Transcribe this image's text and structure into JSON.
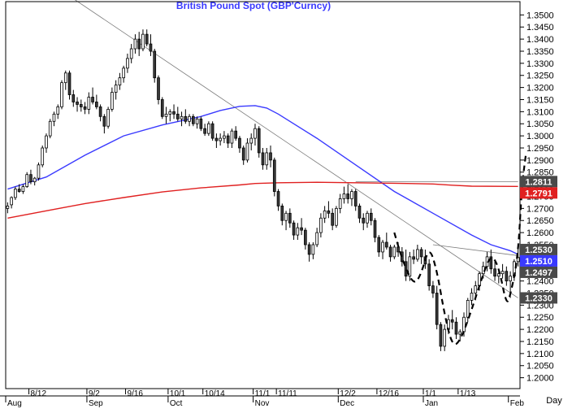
{
  "chart_data": {
    "type": "candlestick",
    "title": "British Pound Spot  (GBP'Curncy)",
    "xlabel": "Day",
    "ylabel": "",
    "ylim": [
      1.1955,
      1.3555
    ],
    "y_ticks": [
      "1.2000",
      "1.2050",
      "1.2100",
      "1.2150",
      "1.2200",
      "1.2250",
      "1.2300",
      "1.2350",
      "1.2400",
      "1.2450",
      "1.2500",
      "1.2550",
      "1.2600",
      "1.2650",
      "1.2700",
      "1.2750",
      "1.2800",
      "1.2850",
      "1.2900",
      "1.2950",
      "1.3000",
      "1.3050",
      "1.3100",
      "1.3150",
      "1.3200",
      "1.3250",
      "1.3300",
      "1.3350",
      "1.3400",
      "1.3450",
      "1.3500"
    ],
    "x_ticks_top": [
      {
        "idx": 6,
        "label": "8/12"
      },
      {
        "idx": 21,
        "label": "9/2"
      },
      {
        "idx": 31,
        "label": "9/16"
      },
      {
        "idx": 42,
        "label": "10/1"
      },
      {
        "idx": 51,
        "label": "10/14"
      },
      {
        "idx": 64,
        "label": "11/1"
      },
      {
        "idx": 70,
        "label": "11/11"
      },
      {
        "idx": 86,
        "label": "12/2"
      },
      {
        "idx": 96,
        "label": "12/16"
      },
      {
        "idx": 108,
        "label": "1/1"
      },
      {
        "idx": 117,
        "label": "1/13"
      }
    ],
    "x_ticks_bottom": [
      {
        "idx": 0,
        "label": "Aug"
      },
      {
        "idx": 21,
        "label": "Sep"
      },
      {
        "idx": 42,
        "label": "Oct"
      },
      {
        "idx": 64,
        "label": "Nov"
      },
      {
        "idx": 86,
        "label": "Dec"
      },
      {
        "idx": 108,
        "label": "Jan"
      },
      {
        "idx": 130,
        "label": "Feb"
      }
    ],
    "ohlc": [
      [
        1.27,
        1.2725,
        1.268,
        1.271
      ],
      [
        1.2715,
        1.275,
        1.27,
        1.2745
      ],
      [
        1.2745,
        1.279,
        1.2735,
        1.278
      ],
      [
        1.278,
        1.28,
        1.2765,
        1.277
      ],
      [
        1.277,
        1.28,
        1.276,
        1.279
      ],
      [
        1.279,
        1.285,
        1.2785,
        1.284
      ],
      [
        1.284,
        1.286,
        1.28,
        1.281
      ],
      [
        1.281,
        1.283,
        1.2795,
        1.2825
      ],
      [
        1.2825,
        1.289,
        1.2815,
        1.288
      ],
      [
        1.288,
        1.296,
        1.287,
        1.295
      ],
      [
        1.295,
        1.301,
        1.293,
        1.3
      ],
      [
        1.3,
        1.307,
        1.299,
        1.306
      ],
      [
        1.306,
        1.31,
        1.304,
        1.309
      ],
      [
        1.309,
        1.313,
        1.307,
        1.312
      ],
      [
        1.312,
        1.323,
        1.311,
        1.322
      ],
      [
        1.322,
        1.327,
        1.319,
        1.326
      ],
      [
        1.326,
        1.327,
        1.315,
        1.317
      ],
      [
        1.317,
        1.319,
        1.312,
        1.314
      ],
      [
        1.314,
        1.316,
        1.31,
        1.313
      ],
      [
        1.313,
        1.315,
        1.31,
        1.312
      ],
      [
        1.312,
        1.314,
        1.309,
        1.311
      ],
      [
        1.311,
        1.318,
        1.309,
        1.316
      ],
      [
        1.316,
        1.32,
        1.313,
        1.314
      ],
      [
        1.314,
        1.317,
        1.311,
        1.312
      ],
      [
        1.312,
        1.313,
        1.306,
        1.308
      ],
      [
        1.308,
        1.309,
        1.301,
        1.304
      ],
      [
        1.304,
        1.312,
        1.303,
        1.311
      ],
      [
        1.311,
        1.32,
        1.31,
        1.318
      ],
      [
        1.318,
        1.323,
        1.315,
        1.321
      ],
      [
        1.321,
        1.326,
        1.319,
        1.324
      ],
      [
        1.324,
        1.329,
        1.322,
        1.328
      ],
      [
        1.328,
        1.334,
        1.326,
        1.332
      ],
      [
        1.332,
        1.338,
        1.33,
        1.336
      ],
      [
        1.336,
        1.342,
        1.334,
        1.34
      ],
      [
        1.34,
        1.343,
        1.333,
        1.336
      ],
      [
        1.336,
        1.344,
        1.335,
        1.342
      ],
      [
        1.342,
        1.344,
        1.337,
        1.338
      ],
      [
        1.338,
        1.342,
        1.333,
        1.335
      ],
      [
        1.335,
        1.336,
        1.322,
        1.324
      ],
      [
        1.324,
        1.325,
        1.313,
        1.315
      ],
      [
        1.315,
        1.316,
        1.307,
        1.308
      ],
      [
        1.308,
        1.312,
        1.305,
        1.309
      ],
      [
        1.309,
        1.311,
        1.306,
        1.31
      ],
      [
        1.31,
        1.313,
        1.307,
        1.309
      ],
      [
        1.309,
        1.312,
        1.306,
        1.307
      ],
      [
        1.307,
        1.31,
        1.304,
        1.308
      ],
      [
        1.308,
        1.311,
        1.305,
        1.306
      ],
      [
        1.306,
        1.309,
        1.304,
        1.308
      ],
      [
        1.308,
        1.309,
        1.304,
        1.305
      ],
      [
        1.305,
        1.308,
        1.303,
        1.307
      ],
      [
        1.307,
        1.308,
        1.302,
        1.303
      ],
      [
        1.303,
        1.305,
        1.3,
        1.301
      ],
      [
        1.301,
        1.306,
        1.3,
        1.305
      ],
      [
        1.305,
        1.306,
        1.298,
        1.299
      ],
      [
        1.299,
        1.301,
        1.295,
        1.298
      ],
      [
        1.298,
        1.301,
        1.296,
        1.299
      ],
      [
        1.299,
        1.302,
        1.297,
        1.3
      ],
      [
        1.3,
        1.301,
        1.295,
        1.297
      ],
      [
        1.297,
        1.303,
        1.295,
        1.302
      ],
      [
        1.302,
        1.304,
        1.298,
        1.299
      ],
      [
        1.299,
        1.3,
        1.293,
        1.295
      ],
      [
        1.295,
        1.296,
        1.288,
        1.29
      ],
      [
        1.29,
        1.299,
        1.289,
        1.297
      ],
      [
        1.297,
        1.301,
        1.294,
        1.299
      ],
      [
        1.299,
        1.305,
        1.296,
        1.303
      ],
      [
        1.303,
        1.304,
        1.291,
        1.293
      ],
      [
        1.293,
        1.295,
        1.286,
        1.288
      ],
      [
        1.288,
        1.295,
        1.286,
        1.293
      ],
      [
        1.293,
        1.296,
        1.287,
        1.29
      ],
      [
        1.29,
        1.291,
        1.275,
        1.277
      ],
      [
        1.277,
        1.278,
        1.269,
        1.271
      ],
      [
        1.271,
        1.272,
        1.263,
        1.265
      ],
      [
        1.265,
        1.269,
        1.261,
        1.268
      ],
      [
        1.268,
        1.27,
        1.262,
        1.264
      ],
      [
        1.264,
        1.265,
        1.257,
        1.259
      ],
      [
        1.259,
        1.264,
        1.257,
        1.262
      ],
      [
        1.262,
        1.266,
        1.259,
        1.261
      ],
      [
        1.261,
        1.262,
        1.253,
        1.255
      ],
      [
        1.255,
        1.256,
        1.248,
        1.251
      ],
      [
        1.251,
        1.256,
        1.249,
        1.255
      ],
      [
        1.255,
        1.262,
        1.254,
        1.26
      ],
      [
        1.26,
        1.268,
        1.258,
        1.266
      ],
      [
        1.266,
        1.271,
        1.264,
        1.269
      ],
      [
        1.269,
        1.273,
        1.266,
        1.268
      ],
      [
        1.268,
        1.27,
        1.261,
        1.263
      ],
      [
        1.263,
        1.271,
        1.262,
        1.27
      ],
      [
        1.27,
        1.276,
        1.268,
        1.274
      ],
      [
        1.274,
        1.279,
        1.272,
        1.276
      ],
      [
        1.276,
        1.28,
        1.272,
        1.274
      ],
      [
        1.274,
        1.278,
        1.271,
        1.277
      ],
      [
        1.277,
        1.278,
        1.269,
        1.271
      ],
      [
        1.271,
        1.272,
        1.264,
        1.266
      ],
      [
        1.266,
        1.268,
        1.261,
        1.264
      ],
      [
        1.264,
        1.269,
        1.262,
        1.268
      ],
      [
        1.268,
        1.27,
        1.263,
        1.265
      ],
      [
        1.265,
        1.266,
        1.256,
        1.258
      ],
      [
        1.258,
        1.259,
        1.25,
        1.252
      ],
      [
        1.252,
        1.257,
        1.249,
        1.256
      ],
      [
        1.256,
        1.26,
        1.253,
        1.254
      ],
      [
        1.254,
        1.255,
        1.248,
        1.25
      ],
      [
        1.25,
        1.255,
        1.249,
        1.254
      ],
      [
        1.254,
        1.256,
        1.25,
        1.252
      ],
      [
        1.252,
        1.254,
        1.246,
        1.248
      ],
      [
        1.248,
        1.253,
        1.24,
        1.242
      ],
      [
        1.242,
        1.252,
        1.24,
        1.25
      ],
      [
        1.25,
        1.253,
        1.247,
        1.249
      ],
      [
        1.249,
        1.255,
        1.248,
        1.253
      ],
      [
        1.253,
        1.254,
        1.247,
        1.25
      ],
      [
        1.25,
        1.253,
        1.245,
        1.247
      ],
      [
        1.247,
        1.249,
        1.236,
        1.238
      ],
      [
        1.238,
        1.24,
        1.233,
        1.235
      ],
      [
        1.235,
        1.238,
        1.22,
        1.222
      ],
      [
        1.222,
        1.223,
        1.211,
        1.213
      ],
      [
        1.213,
        1.222,
        1.211,
        1.22
      ],
      [
        1.22,
        1.226,
        1.218,
        1.224
      ],
      [
        1.224,
        1.228,
        1.22,
        1.223
      ],
      [
        1.223,
        1.225,
        1.216,
        1.218
      ],
      [
        1.218,
        1.22,
        1.215,
        1.219
      ],
      [
        1.219,
        1.227,
        1.217,
        1.225
      ],
      [
        1.225,
        1.233,
        1.223,
        1.232
      ],
      [
        1.232,
        1.237,
        1.23,
        1.235
      ],
      [
        1.235,
        1.24,
        1.232,
        1.238
      ],
      [
        1.238,
        1.244,
        1.236,
        1.243
      ],
      [
        1.243,
        1.248,
        1.241,
        1.246
      ],
      [
        1.246,
        1.252,
        1.244,
        1.25
      ],
      [
        1.25,
        1.253,
        1.243,
        1.245
      ],
      [
        1.245,
        1.248,
        1.24,
        1.242
      ],
      [
        1.242,
        1.244,
        1.239,
        1.243
      ],
      [
        1.243,
        1.247,
        1.241,
        1.244
      ],
      [
        1.244,
        1.246,
        1.238,
        1.24
      ],
      [
        1.24,
        1.244,
        1.233,
        1.242
      ],
      [
        1.242,
        1.249,
        1.24,
        1.248
      ],
      [
        1.248,
        1.254,
        1.246,
        1.2497
      ]
    ],
    "series": [
      {
        "name": "",
        "color": "#3a3aff",
        "points": [
          [
            0,
            1.278
          ],
          [
            10,
            1.283
          ],
          [
            20,
            1.292
          ],
          [
            30,
            1.3
          ],
          [
            40,
            1.3045
          ],
          [
            50,
            1.308
          ],
          [
            55,
            1.3105
          ],
          [
            60,
            1.3122
          ],
          [
            64,
            1.3125
          ],
          [
            67,
            1.3115
          ],
          [
            70,
            1.309
          ],
          [
            80,
            1.299
          ],
          [
            90,
            1.288
          ],
          [
            100,
            1.277
          ],
          [
            110,
            1.268
          ],
          [
            120,
            1.259
          ],
          [
            125,
            1.255
          ],
          [
            130,
            1.2525
          ],
          [
            132,
            1.251
          ]
        ]
      },
      {
        "name": "",
        "color": "#e02020",
        "points": [
          [
            0,
            1.266
          ],
          [
            10,
            1.269
          ],
          [
            20,
            1.272
          ],
          [
            30,
            1.2745
          ],
          [
            40,
            1.2768
          ],
          [
            50,
            1.2785
          ],
          [
            60,
            1.2797
          ],
          [
            64,
            1.2803
          ],
          [
            70,
            1.2806
          ],
          [
            80,
            1.2808
          ],
          [
            90,
            1.2806
          ],
          [
            100,
            1.2804
          ],
          [
            110,
            1.2801
          ],
          [
            115,
            1.2796
          ],
          [
            120,
            1.2792
          ],
          [
            132,
            1.2791
          ]
        ]
      }
    ],
    "trendlines": [
      {
        "points": [
          [
            0,
            1.375
          ],
          [
            132,
            1.233
          ]
        ]
      },
      {
        "points": [
          [
            110,
            1.255
          ],
          [
            132,
            1.2505
          ]
        ]
      },
      {
        "points": [
          [
            90,
            1.2811
          ],
          [
            132,
            1.2811
          ]
        ]
      }
    ],
    "projection": {
      "style": "dashed",
      "points": [
        [
          100,
          1.26
        ],
        [
          102,
          1.249
        ],
        [
          105,
          1.238
        ],
        [
          107,
          1.243
        ],
        [
          109,
          1.2545
        ],
        [
          111,
          1.2445
        ],
        [
          113,
          1.226
        ],
        [
          115,
          1.213
        ],
        [
          117,
          1.215
        ],
        [
          120,
          1.228
        ],
        [
          123,
          1.243
        ],
        [
          125,
          1.251
        ],
        [
          127,
          1.246
        ],
        [
          129,
          1.23
        ],
        [
          130,
          1.234
        ],
        [
          132,
          1.25
        ],
        [
          133,
          1.28
        ],
        [
          134,
          1.292
        ]
      ]
    },
    "price_tags": [
      {
        "value": 1.2811,
        "label": "1.2811",
        "bg": "#4a4a4a",
        "fg": "#ffffff"
      },
      {
        "value": 1.2791,
        "label": "1.2791",
        "bg": "#e02020",
        "fg": "#ffffff"
      },
      {
        "value": 1.253,
        "label": "1.2530",
        "bg": "#4a4a4a",
        "fg": "#ffffff"
      },
      {
        "value": 1.251,
        "label": "1.2510",
        "bg": "#3a3aff",
        "fg": "#ffffff"
      },
      {
        "value": 1.2497,
        "label": "1.2497",
        "bg": "#4a4a4a",
        "fg": "#ffffff"
      },
      {
        "value": 1.233,
        "label": "1.2330",
        "bg": "#4a4a4a",
        "fg": "#ffffff"
      }
    ],
    "colors": {
      "up": "#ffffff",
      "down": "#3a3a3a",
      "title": "#3a3aff"
    }
  }
}
